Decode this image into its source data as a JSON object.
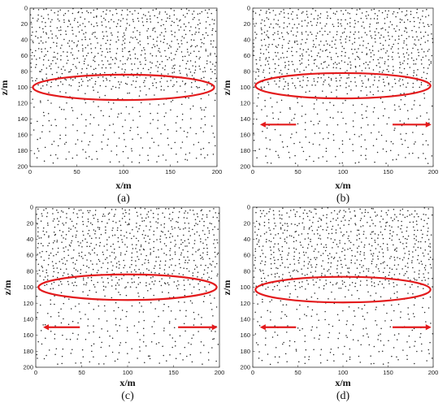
{
  "figure": {
    "accent_color": "#e31a1c",
    "dot_color": "#222222",
    "panels": [
      {
        "caption": "(a)",
        "xlabel": "x/m",
        "ylabel": "z/m",
        "x_ticks": [
          "0",
          "50",
          "100",
          "150",
          "200"
        ],
        "z_ticks": [
          "0",
          "20",
          "40",
          "60",
          "80",
          "100",
          "120",
          "140",
          "160",
          "180",
          "200"
        ],
        "dense_boundary_z": 100,
        "arrows": false,
        "highlight": {
          "shape": "ellipse",
          "center_x": 100,
          "center_z": 100,
          "half_width_x": 97,
          "half_height_z": 16
        }
      },
      {
        "caption": "(b)",
        "xlabel": "x/m",
        "ylabel": "z/m",
        "x_ticks": [
          "0",
          "50",
          "100",
          "150",
          "200"
        ],
        "z_ticks": [
          "0",
          "20",
          "40",
          "60",
          "80",
          "100",
          "120",
          "140",
          "160",
          "180",
          "200"
        ],
        "dense_boundary_z": 100,
        "arrows": true,
        "arrow_z": 147,
        "arrow_left_x": [
          48,
          8
        ],
        "arrow_right_x": [
          155,
          198
        ],
        "highlight": {
          "shape": "ellipse",
          "center_x": 100,
          "center_z": 98,
          "half_width_x": 97,
          "half_height_z": 16
        }
      },
      {
        "caption": "(c)",
        "xlabel": "x/m",
        "ylabel": "z/m",
        "x_ticks": [
          "0",
          "50",
          "100",
          "150",
          "200"
        ],
        "z_ticks": [
          "0",
          "20",
          "40",
          "60",
          "80",
          "100",
          "120",
          "140",
          "160",
          "180",
          "200"
        ],
        "dense_boundary_z": 100,
        "arrows": true,
        "arrow_z": 150,
        "arrow_left_x": [
          48,
          8
        ],
        "arrow_right_x": [
          155,
          198
        ],
        "highlight": {
          "shape": "ellipse",
          "center_x": 100,
          "center_z": 100,
          "half_width_x": 97,
          "half_height_z": 16
        }
      },
      {
        "caption": "(d)",
        "xlabel": "x/m",
        "ylabel": "z/m",
        "x_ticks": [
          "0",
          "50",
          "100",
          "150",
          "200"
        ],
        "z_ticks": [
          "0",
          "20",
          "40",
          "60",
          "80",
          "100",
          "120",
          "140",
          "160",
          "180",
          "200"
        ],
        "dense_boundary_z": 100,
        "arrows": true,
        "arrow_z": 150,
        "arrow_left_x": [
          48,
          8
        ],
        "arrow_right_x": [
          155,
          198
        ],
        "highlight": {
          "shape": "ellipse",
          "center_x": 100,
          "center_z": 103,
          "half_width_x": 97,
          "half_height_z": 16
        }
      }
    ]
  }
}
